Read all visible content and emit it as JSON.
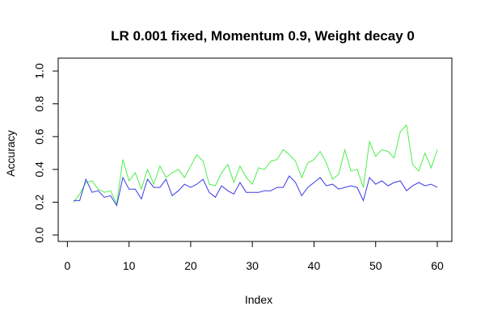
{
  "chart_data": {
    "type": "line",
    "title": "LR 0.001 fixed, Momentum 0.9, Weight decay 0",
    "xlabel": "Index",
    "ylabel": "Accuracy",
    "xlim": [
      1,
      60
    ],
    "ylim": [
      0,
      1
    ],
    "x_ticks": [
      0,
      10,
      20,
      30,
      40,
      50,
      60
    ],
    "y_ticks": [
      0.0,
      0.2,
      0.4,
      0.6,
      0.8,
      1.0
    ],
    "x_tick_labels": [
      "0",
      "10",
      "20",
      "30",
      "40",
      "50",
      "60"
    ],
    "y_tick_labels": [
      "0.0",
      "0.2",
      "0.4",
      "0.6",
      "0.8",
      "1.0"
    ],
    "grid": false,
    "legend": "none",
    "x": [
      1,
      2,
      3,
      4,
      5,
      6,
      7,
      8,
      9,
      10,
      11,
      12,
      13,
      14,
      15,
      16,
      17,
      18,
      19,
      20,
      21,
      22,
      23,
      24,
      25,
      26,
      27,
      28,
      29,
      30,
      31,
      32,
      33,
      34,
      35,
      36,
      37,
      38,
      39,
      40,
      41,
      42,
      43,
      44,
      45,
      46,
      47,
      48,
      49,
      50,
      51,
      52,
      53,
      54,
      55,
      56,
      57,
      58,
      59,
      60
    ],
    "series": [
      {
        "color": "#4cee4c",
        "values": [
          0.2,
          0.25,
          0.32,
          0.33,
          0.28,
          0.26,
          0.27,
          0.19,
          0.46,
          0.33,
          0.38,
          0.28,
          0.4,
          0.31,
          0.42,
          0.35,
          0.38,
          0.4,
          0.35,
          0.42,
          0.49,
          0.45,
          0.31,
          0.3,
          0.38,
          0.43,
          0.32,
          0.42,
          0.35,
          0.31,
          0.41,
          0.4,
          0.45,
          0.46,
          0.52,
          0.49,
          0.45,
          0.35,
          0.44,
          0.46,
          0.51,
          0.44,
          0.34,
          0.37,
          0.52,
          0.39,
          0.4,
          0.29,
          0.57,
          0.48,
          0.52,
          0.51,
          0.47,
          0.63,
          0.67,
          0.43,
          0.39,
          0.5,
          0.41,
          0.52
        ]
      },
      {
        "color": "#3b3be6",
        "values": [
          0.21,
          0.21,
          0.34,
          0.26,
          0.27,
          0.23,
          0.24,
          0.18,
          0.35,
          0.28,
          0.28,
          0.22,
          0.34,
          0.29,
          0.29,
          0.34,
          0.24,
          0.27,
          0.31,
          0.29,
          0.31,
          0.34,
          0.26,
          0.23,
          0.3,
          0.27,
          0.25,
          0.32,
          0.26,
          0.26,
          0.26,
          0.27,
          0.27,
          0.29,
          0.29,
          0.36,
          0.32,
          0.24,
          0.29,
          0.32,
          0.35,
          0.3,
          0.31,
          0.28,
          0.29,
          0.3,
          0.29,
          0.21,
          0.35,
          0.31,
          0.33,
          0.3,
          0.32,
          0.33,
          0.27,
          0.3,
          0.32,
          0.3,
          0.31,
          0.29
        ]
      }
    ]
  }
}
